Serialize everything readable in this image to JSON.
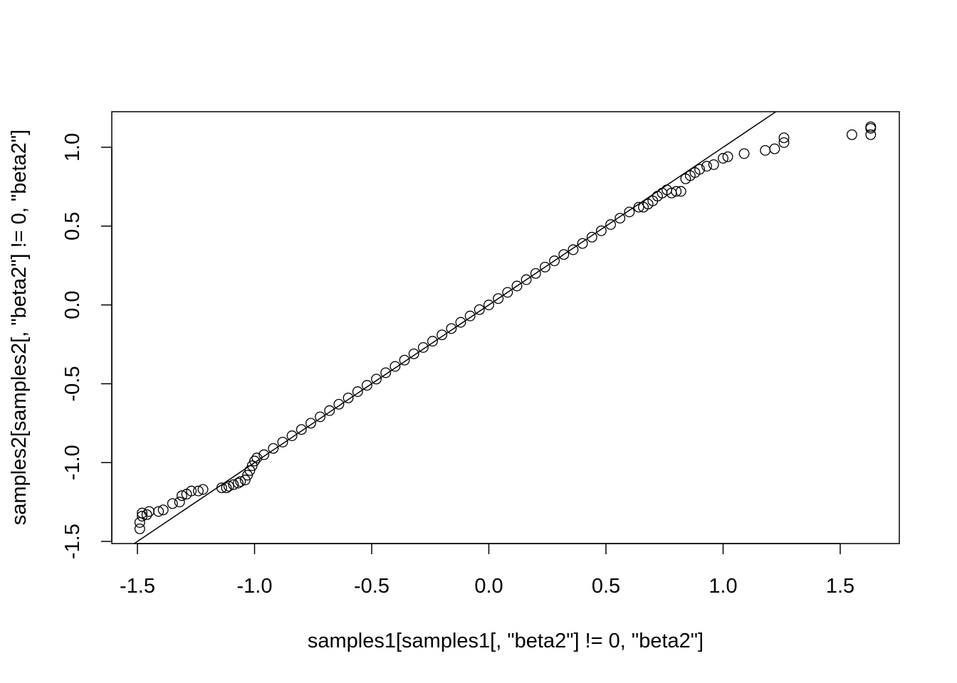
{
  "chart_data": {
    "type": "scatter",
    "title": "",
    "xlabel": "samples1[samples1[, \"beta2\"] != 0, \"beta2\"]",
    "ylabel": "samples2[samples2[, \"beta2\"] != 0, \"beta2\"]",
    "xlim": [
      -1.56,
      1.8
    ],
    "ylim": [
      -1.52,
      1.22
    ],
    "xticks": [
      -1.5,
      -1.0,
      -0.5,
      0.0,
      0.5,
      1.0,
      1.5
    ],
    "xtick_labels": [
      "-1.5",
      "-1.0",
      "-0.5",
      "0.0",
      "0.5",
      "1.0",
      "1.5"
    ],
    "yticks": [
      -1.5,
      -1.0,
      -0.5,
      0.0,
      0.5,
      1.0
    ],
    "ytick_labels": [
      "-1.5",
      "-1.0",
      "-0.5",
      "0.0",
      "0.5",
      "1.0"
    ],
    "grid": false,
    "legend": "none",
    "marker": "open-circle",
    "reference_line": {
      "type": "line",
      "intercept": 0.0,
      "slope": 1.0
    },
    "series": [
      {
        "x": [
          -1.49,
          -1.49,
          -1.48,
          -1.48,
          -1.46,
          -1.45,
          -1.41,
          -1.39,
          -1.35,
          -1.32,
          -1.31,
          -1.29,
          -1.27,
          -1.24,
          -1.22,
          -1.14,
          -1.12,
          -1.11,
          -1.09,
          -1.07,
          -1.06,
          -1.04,
          -1.03,
          -1.02,
          -1.01,
          -1.0,
          -0.99,
          -0.96,
          -0.92,
          -0.88,
          -0.84,
          -0.8,
          -0.76,
          -0.72,
          -0.68,
          -0.64,
          -0.6,
          -0.56,
          -0.52,
          -0.48,
          -0.44,
          -0.4,
          -0.36,
          -0.32,
          -0.28,
          -0.24,
          -0.2,
          -0.16,
          -0.12,
          -0.08,
          -0.04,
          0.0,
          0.04,
          0.08,
          0.12,
          0.16,
          0.2,
          0.24,
          0.28,
          0.32,
          0.36,
          0.4,
          0.44,
          0.48,
          0.52,
          0.56,
          0.6,
          0.64,
          0.66,
          0.68,
          0.7,
          0.72,
          0.74,
          0.76,
          0.78,
          0.8,
          0.82,
          0.84,
          0.86,
          0.88,
          0.9,
          0.93,
          0.96,
          1.0,
          1.02,
          1.09,
          1.18,
          1.22,
          1.26,
          1.26,
          1.55,
          1.63,
          1.63,
          1.63
        ],
        "y": [
          -1.42,
          -1.38,
          -1.34,
          -1.32,
          -1.33,
          -1.31,
          -1.31,
          -1.3,
          -1.26,
          -1.25,
          -1.21,
          -1.2,
          -1.18,
          -1.18,
          -1.17,
          -1.16,
          -1.16,
          -1.15,
          -1.14,
          -1.13,
          -1.12,
          -1.11,
          -1.08,
          -1.05,
          -1.02,
          -0.99,
          -0.97,
          -0.95,
          -0.91,
          -0.87,
          -0.83,
          -0.79,
          -0.75,
          -0.71,
          -0.67,
          -0.63,
          -0.59,
          -0.55,
          -0.51,
          -0.47,
          -0.43,
          -0.39,
          -0.35,
          -0.31,
          -0.27,
          -0.23,
          -0.19,
          -0.15,
          -0.11,
          -0.07,
          -0.03,
          0.0,
          0.04,
          0.08,
          0.12,
          0.16,
          0.2,
          0.24,
          0.28,
          0.32,
          0.35,
          0.39,
          0.43,
          0.47,
          0.51,
          0.55,
          0.59,
          0.62,
          0.62,
          0.64,
          0.66,
          0.69,
          0.71,
          0.73,
          0.71,
          0.72,
          0.72,
          0.8,
          0.82,
          0.84,
          0.86,
          0.88,
          0.89,
          0.93,
          0.94,
          0.96,
          0.98,
          0.99,
          1.03,
          1.06,
          1.08,
          1.08,
          1.12,
          1.13
        ]
      }
    ]
  }
}
